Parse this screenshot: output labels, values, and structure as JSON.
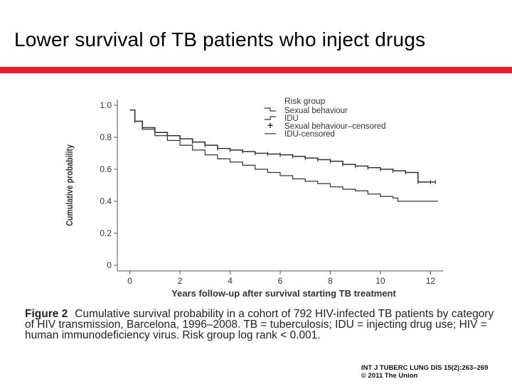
{
  "slide": {
    "title": "Lower survival of TB patients who inject drugs",
    "accent_color": "#ee1c25"
  },
  "chart_data": {
    "type": "line",
    "title": "",
    "xlabel": "Years follow-up after survival starting TB treatment",
    "ylabel": "Cumulative probability",
    "xlim": [
      -0.5,
      12.5
    ],
    "ylim": [
      0,
      1.0
    ],
    "x_ticks": [
      0,
      2,
      4,
      6,
      8,
      10,
      12
    ],
    "y_ticks": [
      0,
      0.2,
      0.4,
      0.6,
      0.8,
      1.0
    ],
    "y_tick_labels": [
      "0",
      "0.2",
      "0.4",
      "0.6",
      "0.8",
      "1.0"
    ],
    "legend": {
      "title": "Risk group",
      "position": "top-right",
      "entries": [
        "Sexual behaviour",
        "IDU",
        "Sexual behaviour–censored",
        "IDU-censored"
      ]
    },
    "series": [
      {
        "name": "Sexual behaviour",
        "x": [
          0,
          0.2,
          0.5,
          1.0,
          1.5,
          2.0,
          2.5,
          3.0,
          3.5,
          4.0,
          4.5,
          5.0,
          5.5,
          6.0,
          6.5,
          7.0,
          7.5,
          8.0,
          8.5,
          9.0,
          9.5,
          10.0,
          10.5,
          11.0,
          11.5,
          12.0,
          12.2
        ],
        "y": [
          0.97,
          0.9,
          0.86,
          0.83,
          0.81,
          0.79,
          0.77,
          0.75,
          0.73,
          0.72,
          0.71,
          0.7,
          0.695,
          0.69,
          0.68,
          0.67,
          0.66,
          0.65,
          0.63,
          0.62,
          0.61,
          0.6,
          0.59,
          0.58,
          0.52,
          0.52,
          0.52
        ]
      },
      {
        "name": "IDU",
        "x": [
          0,
          0.2,
          0.5,
          1.0,
          1.5,
          2.0,
          2.5,
          3.0,
          3.5,
          4.0,
          4.5,
          5.0,
          5.5,
          6.0,
          6.5,
          7.0,
          7.5,
          8.0,
          8.5,
          9.0,
          9.5,
          10.0,
          10.5,
          10.7,
          11.5,
          12.3
        ],
        "y": [
          0.97,
          0.9,
          0.85,
          0.81,
          0.78,
          0.75,
          0.72,
          0.69,
          0.665,
          0.645,
          0.625,
          0.6,
          0.58,
          0.56,
          0.54,
          0.525,
          0.51,
          0.49,
          0.475,
          0.465,
          0.445,
          0.43,
          0.42,
          0.4,
          0.4,
          0.4
        ]
      }
    ],
    "series_colors": [
      "#333333",
      "#333333"
    ]
  },
  "caption": {
    "label": "Figure 2",
    "text": "Cumulative survival probability in a cohort of 792 HIV-infected TB patients by category of HIV transmission, Barcelona, 1996–2008. TB = tuberculosis; IDU = injecting drug use; HIV = human immunodeficiency virus. Risk group log rank < 0.001."
  },
  "source": {
    "line1": "INT J TUBERC LUNG DIS 15(2):263–269",
    "line2": "© 2011 The Union"
  }
}
